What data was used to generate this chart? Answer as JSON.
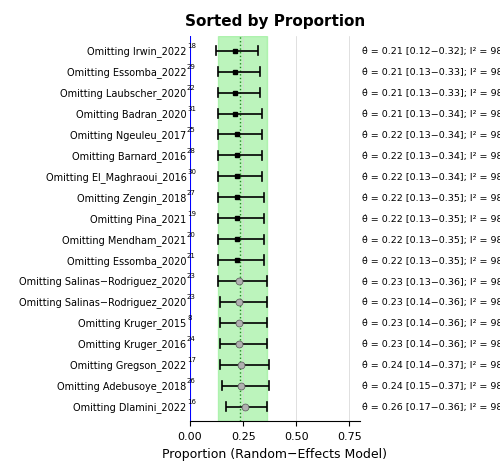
{
  "title": "Sorted by Proportion",
  "xlabel": "Proportion (Random−Effects Model)",
  "studies": [
    {
      "label": "Omitting Irwin_2022",
      "superscript": "18",
      "effect": 0.21,
      "ci_low": 0.12,
      "ci_high": 0.32,
      "i2": 98
    },
    {
      "label": "Omitting Essomba_2022",
      "superscript": "29",
      "effect": 0.21,
      "ci_low": 0.13,
      "ci_high": 0.33,
      "i2": 98
    },
    {
      "label": "Omitting Laubscher_2020",
      "superscript": "22",
      "effect": 0.21,
      "ci_low": 0.13,
      "ci_high": 0.33,
      "i2": 98
    },
    {
      "label": "Omitting Badran_2020",
      "superscript": "31",
      "effect": 0.21,
      "ci_low": 0.13,
      "ci_high": 0.34,
      "i2": 98
    },
    {
      "label": "Omitting Ngeuleu_2017",
      "superscript": "25",
      "effect": 0.22,
      "ci_low": 0.13,
      "ci_high": 0.34,
      "i2": 98
    },
    {
      "label": "Omitting Barnard_2016",
      "superscript": "28",
      "effect": 0.22,
      "ci_low": 0.13,
      "ci_high": 0.34,
      "i2": 98
    },
    {
      "label": "Omitting El_Maghraoui_2016",
      "superscript": "30",
      "effect": 0.22,
      "ci_low": 0.13,
      "ci_high": 0.34,
      "i2": 98
    },
    {
      "label": "Omitting Zengin_2018",
      "superscript": "27",
      "effect": 0.22,
      "ci_low": 0.13,
      "ci_high": 0.35,
      "i2": 98
    },
    {
      "label": "Omitting Pina_2021",
      "superscript": "19",
      "effect": 0.22,
      "ci_low": 0.13,
      "ci_high": 0.35,
      "i2": 98
    },
    {
      "label": "Omitting Mendham_2021",
      "superscript": "20",
      "effect": 0.22,
      "ci_low": 0.13,
      "ci_high": 0.35,
      "i2": 98
    },
    {
      "label": "Omitting Essomba_2020",
      "superscript": "21",
      "effect": 0.22,
      "ci_low": 0.13,
      "ci_high": 0.35,
      "i2": 98
    },
    {
      "label": "Omitting Salinas−Rodriguez_2020",
      "superscript": "23",
      "effect": 0.23,
      "ci_low": 0.13,
      "ci_high": 0.36,
      "i2": 98
    },
    {
      "label": "Omitting Salinas−Rodriguez_2020",
      "superscript": "23",
      "effect": 0.23,
      "ci_low": 0.14,
      "ci_high": 0.36,
      "i2": 98
    },
    {
      "label": "Omitting Kruger_2015",
      "superscript": "8",
      "effect": 0.23,
      "ci_low": 0.14,
      "ci_high": 0.36,
      "i2": 98
    },
    {
      "label": "Omitting Kruger_2016",
      "superscript": "24",
      "effect": 0.23,
      "ci_low": 0.14,
      "ci_high": 0.36,
      "i2": 98
    },
    {
      "label": "Omitting Gregson_2022",
      "superscript": "17",
      "effect": 0.24,
      "ci_low": 0.14,
      "ci_high": 0.37,
      "i2": 98
    },
    {
      "label": "Omitting Adebusoye_2018",
      "superscript": "26",
      "effect": 0.24,
      "ci_low": 0.15,
      "ci_high": 0.37,
      "i2": 98
    },
    {
      "label": "Omitting Dlamini_2022",
      "superscript": "16",
      "effect": 0.26,
      "ci_low": 0.17,
      "ci_high": 0.36,
      "i2": 98
    }
  ],
  "xlim": [
    0.0,
    0.8
  ],
  "xticks": [
    0.0,
    0.25,
    0.5,
    0.75
  ],
  "xtick_labels": [
    "0.00",
    "0.25",
    "0.50",
    "0.75"
  ],
  "vline_x": 0.0,
  "dotted_line_x": 0.235,
  "green_band_low": 0.13,
  "green_band_high": 0.36,
  "green_color": "#90EE90",
  "blue_line_color": "#0000FF",
  "dot_color_small": "#000000",
  "dot_color_large": "#C0C0C0",
  "ci_line_color": "#000000",
  "title_fontsize": 11,
  "tick_fontsize": 8,
  "xlabel_fontsize": 9,
  "annot_fontsize": 6.8,
  "label_fontsize": 7.0,
  "sup_fontsize": 5.0
}
